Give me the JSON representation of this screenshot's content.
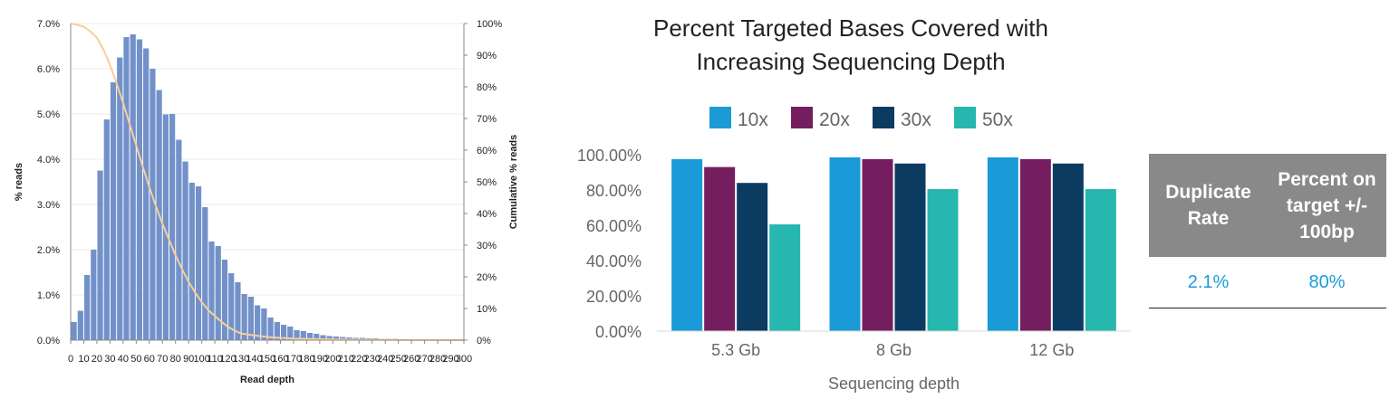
{
  "chart_data": [
    {
      "type": "bar",
      "title": "",
      "xlabel": "Read depth",
      "ylabel": "% reads",
      "y2label": "Cumulative % reads",
      "xlim": [
        0,
        300
      ],
      "ylim": [
        0,
        7
      ],
      "y2lim": [
        0,
        100
      ],
      "x_ticks": [
        "0",
        "10",
        "20",
        "30",
        "40",
        "50",
        "60",
        "70",
        "80",
        "90",
        "100",
        "110",
        "120",
        "130",
        "140",
        "150",
        "160",
        "170",
        "180",
        "190",
        "200",
        "210",
        "220",
        "230",
        "240",
        "250",
        "260",
        "270",
        "280",
        "290",
        "300"
      ],
      "y_ticks": [
        "0.0%",
        "1.0%",
        "2.0%",
        "3.0%",
        "4.0%",
        "5.0%",
        "6.0%",
        "7.0%"
      ],
      "y2_ticks": [
        "0%",
        "10%",
        "20%",
        "30%",
        "40%",
        "50%",
        "60%",
        "70%",
        "80%",
        "90%",
        "100%"
      ],
      "bar_color": "#7391c9",
      "line_color": "#f5cf9a",
      "bin_width": 5,
      "x": [
        2.5,
        7.5,
        12.5,
        17.5,
        22.5,
        27.5,
        32.5,
        37.5,
        42.5,
        47.5,
        52.5,
        57.5,
        62.5,
        67.5,
        72.5,
        77.5,
        82.5,
        87.5,
        92.5,
        97.5,
        102.5,
        107.5,
        112.5,
        117.5,
        122.5,
        127.5,
        132.5,
        137.5,
        142.5,
        147.5,
        152.5,
        157.5,
        162.5,
        167.5,
        172.5,
        177.5,
        182.5,
        187.5,
        192.5,
        197.5,
        202.5,
        207.5,
        212.5,
        217.5,
        222.5,
        227.5,
        232.5,
        237.5,
        242.5,
        247.5,
        252.5,
        257.5,
        262.5,
        267.5,
        272.5,
        277.5,
        282.5,
        287.5,
        292.5,
        297.5
      ],
      "values": [
        0.4,
        0.65,
        1.44,
        2.0,
        3.75,
        4.88,
        5.7,
        6.25,
        6.7,
        6.76,
        6.65,
        6.45,
        6.0,
        5.53,
        4.99,
        5.0,
        4.43,
        3.95,
        3.48,
        3.4,
        2.94,
        2.18,
        2.08,
        1.78,
        1.48,
        1.28,
        1.02,
        0.96,
        0.77,
        0.7,
        0.5,
        0.4,
        0.34,
        0.3,
        0.22,
        0.2,
        0.16,
        0.14,
        0.11,
        0.09,
        0.08,
        0.07,
        0.06,
        0.05,
        0.05,
        0.04,
        0.04,
        0.03,
        0.03,
        0.03,
        0.02,
        0.02,
        0.02,
        0.02,
        0.01,
        0.01,
        0.01,
        0.01,
        0.01,
        0.01
      ],
      "cumulative": {
        "x": [
          0,
          5,
          10,
          15,
          20,
          25,
          30,
          35,
          40,
          45,
          50,
          55,
          60,
          65,
          70,
          75,
          80,
          85,
          90,
          95,
          100,
          105,
          110,
          115,
          120,
          125,
          130,
          140,
          150,
          160,
          170,
          180,
          200,
          220,
          240,
          260,
          300
        ],
        "values": [
          100,
          99.6,
          99,
          97.5,
          95.5,
          91.8,
          86.9,
          81.2,
          74.9,
          68.2,
          61.5,
          54.8,
          48.3,
          42.3,
          36.8,
          31.8,
          26.8,
          22.4,
          18.4,
          15.0,
          12.0,
          9.5,
          7.6,
          5.8,
          4.2,
          3.0,
          2.1,
          1.5,
          1.0,
          0.7,
          0.5,
          0.4,
          0.25,
          0.15,
          0.1,
          0.05,
          0
        ]
      }
    },
    {
      "type": "bar",
      "title": [
        "Percent Targeted Bases Covered with",
        "Increasing Sequencing Depth"
      ],
      "xlabel": "Sequencing depth",
      "ylabel": "",
      "ylim": [
        0,
        100
      ],
      "y_ticks": [
        "0.00%",
        "20.00%",
        "40.00%",
        "60.00%",
        "80.00%",
        "100.00%"
      ],
      "categories": [
        "5.3 Gb",
        "8 Gb",
        "12 Gb"
      ],
      "legend_position": "top",
      "series": [
        {
          "name": "10x",
          "color": "#1a9bd7",
          "values": [
            97.5,
            98.5,
            98.5
          ]
        },
        {
          "name": "20x",
          "color": "#751e5f",
          "values": [
            93,
            97.5,
            97.5
          ]
        },
        {
          "name": "30x",
          "color": "#0c3b62",
          "values": [
            84,
            95,
            95
          ]
        },
        {
          "name": "50x",
          "color": "#26b7af",
          "values": [
            60.5,
            80.5,
            80.5
          ]
        }
      ]
    }
  ],
  "table": {
    "headers": [
      "Duplicate Rate",
      "Percent on target +/- 100bp"
    ],
    "values": [
      "2.1%",
      "80%"
    ]
  }
}
